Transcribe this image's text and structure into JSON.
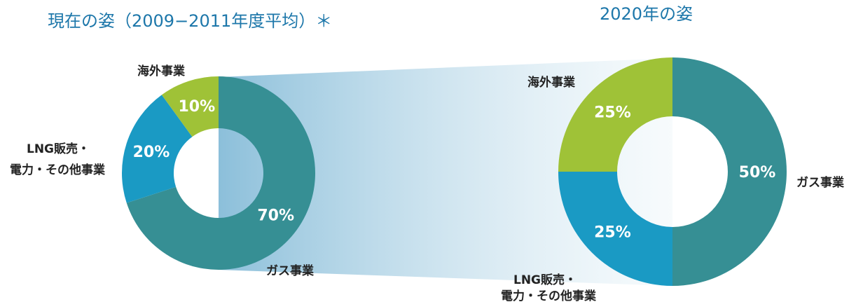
{
  "chart_data": [
    {
      "type": "pie",
      "title": "現在の姿（2009−2011年度平均）＊",
      "categories": [
        "ガス事業",
        "LNG販売・電力・その他事業",
        "海外事業"
      ],
      "values": [
        70,
        20,
        10
      ],
      "value_labels": [
        "70%",
        "20%",
        "10%"
      ],
      "colors": [
        "#368f94",
        "#1a9ac4",
        "#9fc237"
      ],
      "category_labels": {
        "gas": "ガス事業",
        "lng_line1": "LNG販売・",
        "lng_line2": "電力・その他事業",
        "overseas": "海外事業"
      }
    },
    {
      "type": "pie",
      "title": "2020年の姿",
      "categories": [
        "ガス事業",
        "LNG販売・電力・その他事業",
        "海外事業"
      ],
      "values": [
        50,
        25,
        25
      ],
      "value_labels": [
        "50%",
        "25%",
        "25%"
      ],
      "colors": [
        "#368f94",
        "#1a9ac4",
        "#9fc237"
      ],
      "category_labels": {
        "gas": "ガス事業",
        "lng_line1": "LNG販売・",
        "lng_line2": "電力・その他事業",
        "overseas": "海外事業"
      }
    }
  ]
}
